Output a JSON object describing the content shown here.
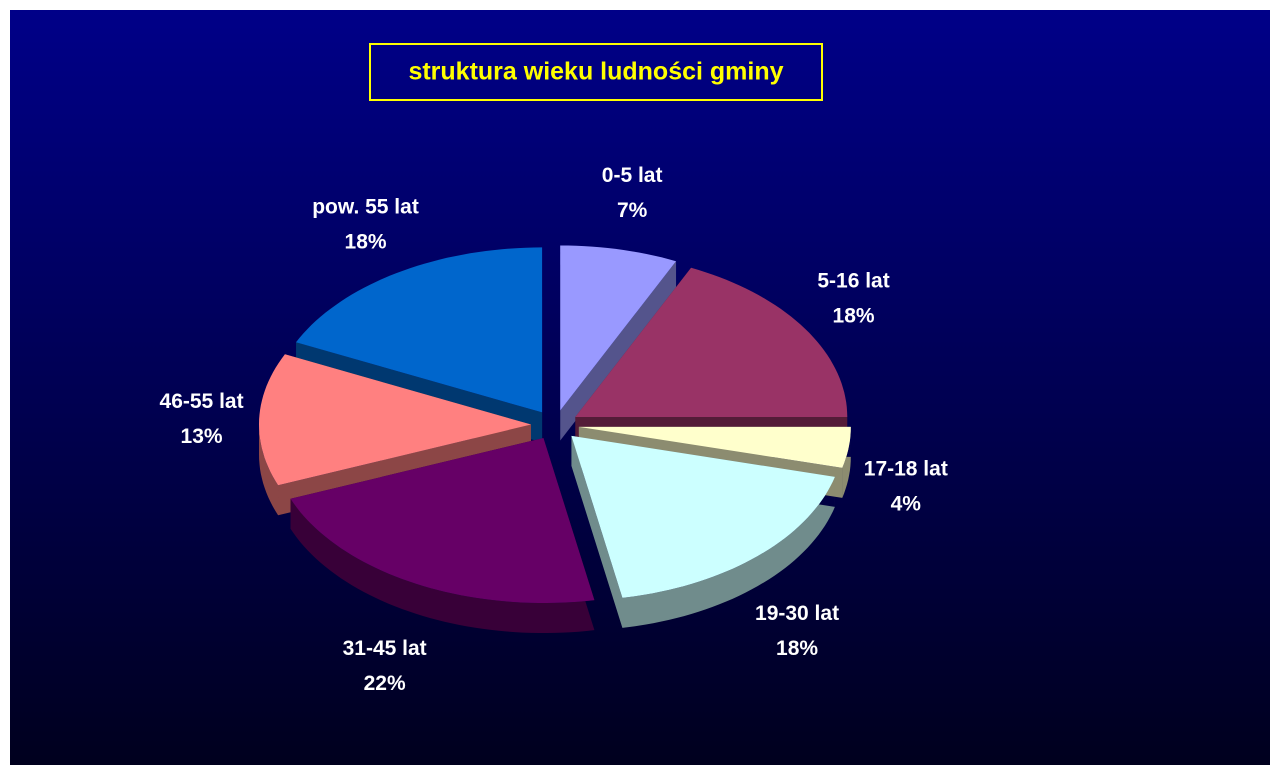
{
  "chart_data": {
    "type": "pie",
    "title": "struktura wieku ludności gminy",
    "categories": [
      "0-5 lat",
      "5-16 lat",
      "17-18 lat",
      "19-30 lat",
      "31-45 lat",
      "46-55 lat",
      "pow. 55 lat"
    ],
    "values": [
      7,
      18,
      4,
      18,
      22,
      13,
      18
    ],
    "value_labels": [
      "7%",
      "18%",
      "4%",
      "18%",
      "22%",
      "13%",
      "18%"
    ],
    "colors": [
      "#9999ff",
      "#993366",
      "#ffffcc",
      "#ccffff",
      "#660066",
      "#ff8080",
      "#0066cc"
    ]
  }
}
